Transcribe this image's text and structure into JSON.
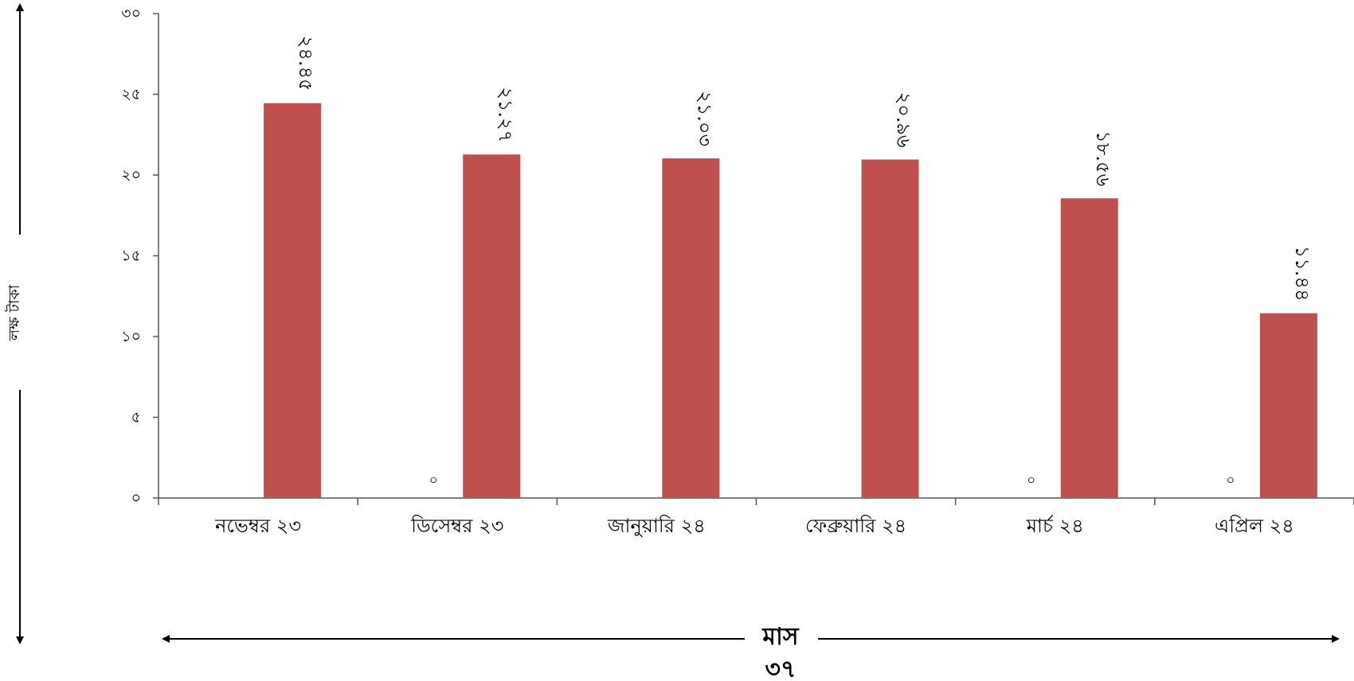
{
  "chart_data": {
    "type": "bar",
    "categories": [
      "নভেম্বর ২৩",
      "ডিসেম্বর ২৩",
      "জানুয়ারি ২৪",
      "ফেব্রুয়ারি ২৪",
      "মার্চ ২৪",
      "এপ্রিল ২৪"
    ],
    "values": [
      24.45,
      21.27,
      21.03,
      20.96,
      18.56,
      11.44
    ],
    "value_labels": [
      "২৪.৪৫",
      "২১.২৭",
      "২১.০৩",
      "২০.৯৬",
      "১৮.৫৬",
      "১১.৪৪"
    ],
    "secondary_values": [
      null,
      0,
      null,
      null,
      0,
      0
    ],
    "secondary_labels": [
      "",
      "০",
      "",
      "",
      "০",
      "০"
    ],
    "ylim": [
      0,
      30
    ],
    "yticks": [
      0,
      5,
      10,
      15,
      20,
      25,
      30
    ],
    "ytick_labels": [
      "০",
      "৫",
      "১০",
      "১৫",
      "২০",
      "২৫",
      "৩০"
    ],
    "ylabel": "লক্ষ টাকা",
    "xlabel": "মাস",
    "bar_color": "#c0504d",
    "grid": false,
    "legend": "none"
  },
  "page_number": "৩৭"
}
